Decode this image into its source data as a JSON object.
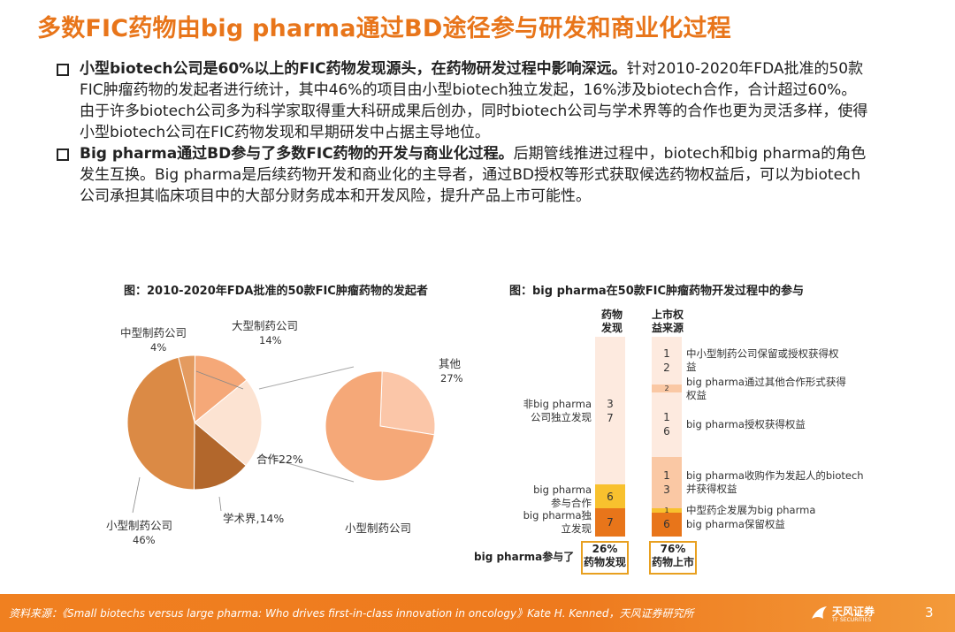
{
  "title": "多数FIC药物由big pharma通过BD途径参与研发和商业化过程",
  "bullets": [
    {
      "bold": "小型biotech公司是60%以上的FIC药物发现源头，在药物研发过程中影响深远。",
      "text": "针对2010-2020年FDA批准的50款FIC肿瘤药物的发起者进行统计，其中46%的项目由小型biotech独立发起，16%涉及biotech合作，合计超过60%。由于许多biotech公司多为科学家取得重大科研成果后创办，同时biotech公司与学术界等的合作也更为灵活多样，使得小型biotech公司在FIC药物发现和早期研发中占据主导地位。"
    },
    {
      "bold": "Big pharma通过BD参与了多数FIC药物的开发与商业化过程。",
      "text": "后期管线推进过程中，biotech和big pharma的角色发生互换。Big pharma是后续药物开发和商业化的主导者，通过BD授权等形式获取候选药物权益后，可以为biotech公司承担其临床项目中的大部分财务成本和开发风险，提升产品上市可能性。"
    }
  ],
  "chart1": {
    "title": "图：2010-2020年FDA批准的50款FIC肿瘤药物的发起者",
    "labels": {
      "mid": "中型制药公司",
      "mid_pct": "4%",
      "large": "大型制药公司",
      "large_pct": "14%",
      "coop": "合作22%",
      "academia": "学术界,14%",
      "small": "小型制药公司",
      "small_pct": "46%",
      "other": "其他",
      "other_pct": "27%",
      "small2": "小型制药公司"
    }
  },
  "chart2": {
    "title": "图：big pharma在50款FIC肿瘤药物开发过程中的参与",
    "col1_head": "药物\n发现",
    "col2_head": "上市权\n益来源",
    "col1_segments": [
      {
        "label": "非big pharma\n公司独立发现",
        "value": "3\n7"
      },
      {
        "label": "big pharma\n参与合作",
        "value": "6"
      },
      {
        "label": "big pharma独\n立发现",
        "value": "7"
      }
    ],
    "col2_segments": [
      {
        "label": "中小型制药公司保留或授权获得权\n益",
        "value": "1\n2"
      },
      {
        "label": "big pharma通过其他合作形式获得\n权益",
        "value": "2"
      },
      {
        "label": "big pharma授权获得权益",
        "value": "1\n6"
      },
      {
        "label": "big pharma收购作为发起人的biotech\n并获得权益",
        "value": "1\n3"
      },
      {
        "label": "中型药企发展为big pharma",
        "value": "1"
      },
      {
        "label": "big pharma保留权益",
        "value": "6"
      }
    ],
    "bottom_label": "big pharma参与了",
    "box1": "26%\n药物发现",
    "box2": "76%\n药物上市"
  },
  "chart_data": [
    {
      "type": "pie",
      "title": "图：2010-2020年FDA批准的50款FIC肿瘤药物的发起者",
      "categories": [
        "小型制药公司",
        "中型制药公司",
        "大型制药公司",
        "合作",
        "学术界"
      ],
      "values": [
        46,
        4,
        14,
        22,
        14
      ]
    },
    {
      "type": "pie",
      "categories": [
        "其他",
        "小型制药公司"
      ],
      "values": [
        27,
        73
      ]
    },
    {
      "type": "bar",
      "title": "图：big pharma在50款FIC肿瘤药物开发过程中的参与",
      "categories": [
        "药物发现",
        "上市权益来源"
      ],
      "series": [
        {
          "name": "非big pharma公司独立发现",
          "values": [
            37,
            null
          ]
        },
        {
          "name": "big pharma参与合作",
          "values": [
            6,
            null
          ]
        },
        {
          "name": "big pharma独立发现",
          "values": [
            7,
            null
          ]
        },
        {
          "name": "中小型制药公司保留或授权获得权益",
          "values": [
            null,
            12
          ]
        },
        {
          "name": "big pharma通过其他合作形式获得权益",
          "values": [
            null,
            2
          ]
        },
        {
          "name": "big pharma授权获得权益",
          "values": [
            null,
            16
          ]
        },
        {
          "name": "big pharma收购作为发起人的biotech并获得权益",
          "values": [
            null,
            13
          ]
        },
        {
          "name": "中型药企发展为big pharma",
          "values": [
            null,
            1
          ]
        },
        {
          "name": "big pharma保留权益",
          "values": [
            null,
            6
          ]
        }
      ]
    }
  ],
  "colors": {
    "accent": "#E8751A",
    "pie_small": "#DB8A45",
    "pie_mid": "#E49B60",
    "pie_large": "#F5A878",
    "pie_coop": "#FCE3D2",
    "pie_academia": "#B2672C",
    "pie_other": "#FBC6A8",
    "bar_light": "#FDEADF",
    "bar_mid": "#FAC8A4",
    "bar_yellow": "#F8C12E",
    "bar_dark": "#E8751A"
  },
  "footer": {
    "source": "资料来源：《Small biotechs versus large pharma: Who drives first-in-class innovation in oncology》Kate H. Kenned，天风证券研究所",
    "logo": "天风证券",
    "logo_sub": "TF SECURITIES",
    "page": "3"
  }
}
